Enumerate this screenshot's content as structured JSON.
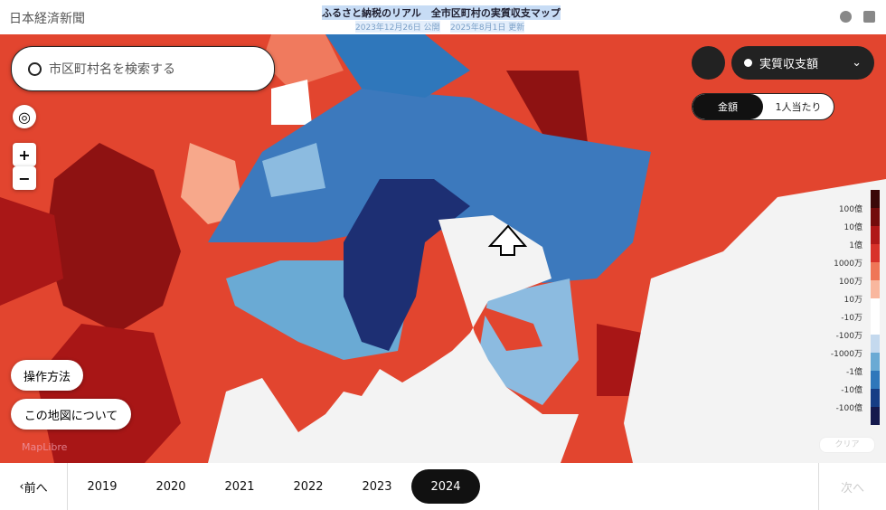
{
  "header": {
    "logo": "日本経済新聞",
    "title": "ふるさと納税のリアル　全市区町村の実質収支マップ",
    "published": "2023年12月26日 公開",
    "updated": "2025年8月1日 更新"
  },
  "search": {
    "placeholder": "市区町村名を検索する"
  },
  "zoom": {
    "in": "+",
    "out": "−"
  },
  "buttons": {
    "help": "操作方法",
    "about": "この地図について",
    "clear": "クリア"
  },
  "attribution": "MapLibre",
  "metric": {
    "label": "実質収支額"
  },
  "toggle": [
    {
      "label": "金額",
      "selected": true
    },
    {
      "label": "1人当たり",
      "selected": false
    }
  ],
  "legend": {
    "labels": [
      "100億",
      "10億",
      "1億",
      "1000万",
      "100万",
      "10万",
      "-10万",
      "-100万",
      "-1000万",
      "-1億",
      "-10億",
      "-100億"
    ],
    "colors": [
      "#3a0808",
      "#730c0c",
      "#b01818",
      "#d8322a",
      "#ef7657",
      "#f9b79e",
      "#ffffff",
      "#ffffff",
      "#c4d9ee",
      "#6aaad4",
      "#2f77bb",
      "#163d85",
      "#15194d"
    ]
  },
  "timeline": {
    "prev": "前へ",
    "next": "次へ",
    "years": [
      {
        "label": "2019",
        "selected": false
      },
      {
        "label": "2020",
        "selected": false
      },
      {
        "label": "2021",
        "selected": false
      },
      {
        "label": "2022",
        "selected": false
      },
      {
        "label": "2023",
        "selected": false
      },
      {
        "label": "2024",
        "selected": true
      }
    ]
  }
}
